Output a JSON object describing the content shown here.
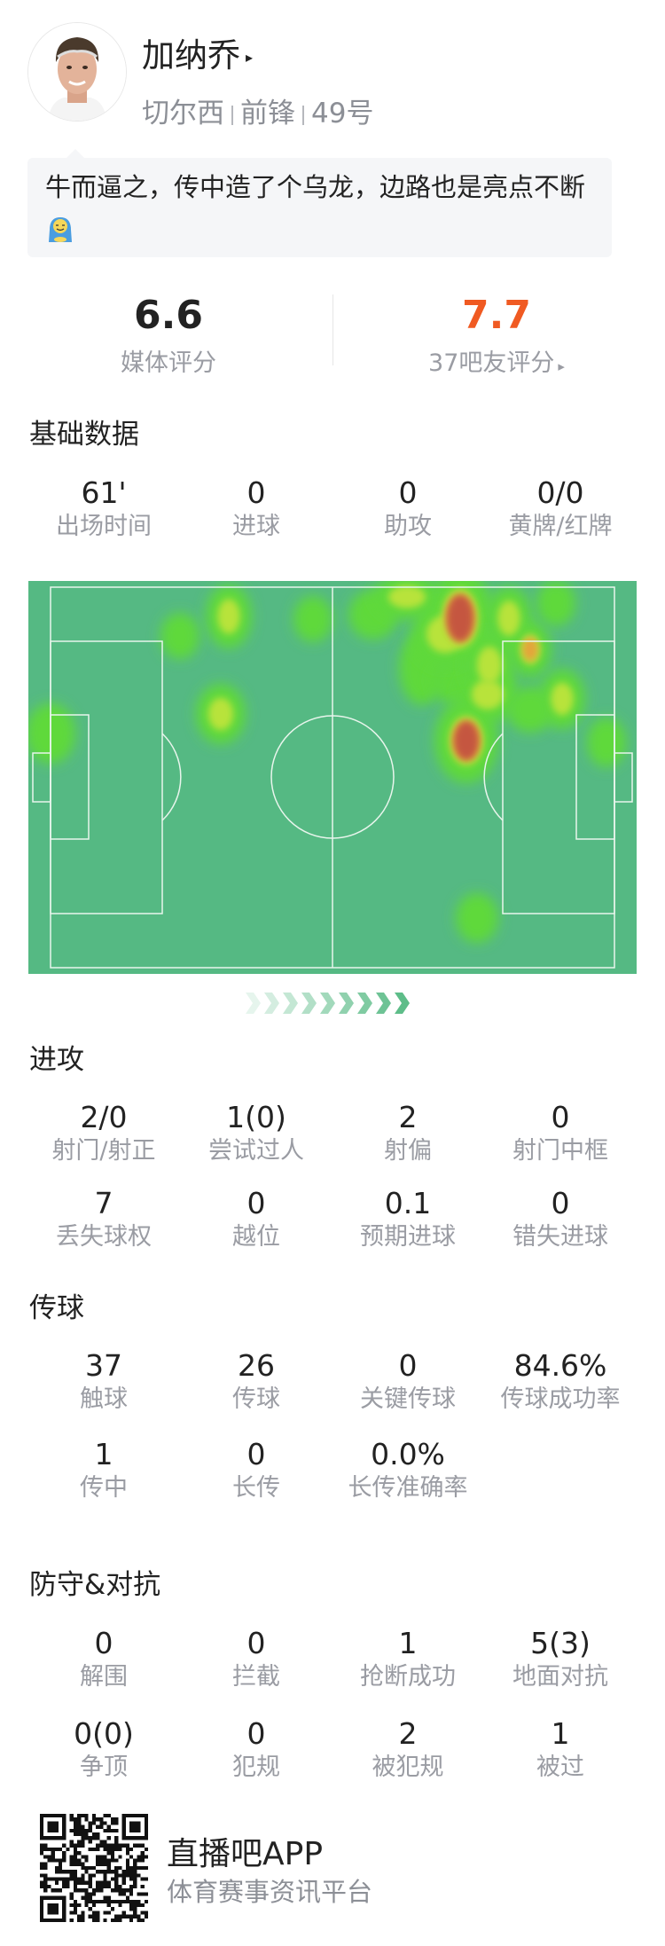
{
  "player": {
    "name": "加纳乔",
    "name_arrow": "▸",
    "club": "切尔西",
    "position": "前锋",
    "number": "49号",
    "avatar_icon": "player-photo"
  },
  "comment": {
    "text": "牛而逼之，传中造了个乌龙，边路也是亮点不断",
    "emoji_icon": "blanket-smile-emoji"
  },
  "ratings": {
    "media": {
      "value": "6.6",
      "label": "媒体评分",
      "color": "#222222"
    },
    "fans": {
      "value": "7.7",
      "label": "37吧友评分",
      "arrow": "▸",
      "color": "#f05a22"
    }
  },
  "basic": {
    "title": "基础数据",
    "items": [
      {
        "value": "61'",
        "label": "出场时间"
      },
      {
        "value": "0",
        "label": "进球"
      },
      {
        "value": "0",
        "label": "助攻"
      },
      {
        "value": "0/0",
        "label": "黄牌/红牌"
      }
    ]
  },
  "heatmap": {
    "pitch_color": "#55b983",
    "line_color": "#e8f5ec",
    "attack_direction": "right"
  },
  "attack": {
    "title": "进攻",
    "items": [
      {
        "value": "2/0",
        "label": "射门/射正"
      },
      {
        "value": "1(0)",
        "label": "尝试过人"
      },
      {
        "value": "2",
        "label": "射偏"
      },
      {
        "value": "0",
        "label": "射门中框"
      },
      {
        "value": "7",
        "label": "丢失球权"
      },
      {
        "value": "0",
        "label": "越位"
      },
      {
        "value": "0.1",
        "label": "预期进球"
      },
      {
        "value": "0",
        "label": "错失进球"
      }
    ]
  },
  "passing": {
    "title": "传球",
    "items": [
      {
        "value": "37",
        "label": "触球"
      },
      {
        "value": "26",
        "label": "传球"
      },
      {
        "value": "0",
        "label": "关键传球"
      },
      {
        "value": "84.6%",
        "label": "传球成功率"
      },
      {
        "value": "1",
        "label": "传中"
      },
      {
        "value": "0",
        "label": "长传"
      },
      {
        "value": "0.0%",
        "label": "长传准确率"
      }
    ]
  },
  "defense": {
    "title": "防守&对抗",
    "items": [
      {
        "value": "0",
        "label": "解围"
      },
      {
        "value": "0",
        "label": "拦截"
      },
      {
        "value": "1",
        "label": "抢断成功"
      },
      {
        "value": "5(3)",
        "label": "地面对抗"
      },
      {
        "value": "0(0)",
        "label": "争顶"
      },
      {
        "value": "0",
        "label": "犯规"
      },
      {
        "value": "2",
        "label": "被犯规"
      },
      {
        "value": "1",
        "label": "被过"
      }
    ]
  },
  "footer": {
    "app_name": "直播吧APP",
    "tagline": "体育赛事资讯平台",
    "qr_icon": "qr-code"
  }
}
